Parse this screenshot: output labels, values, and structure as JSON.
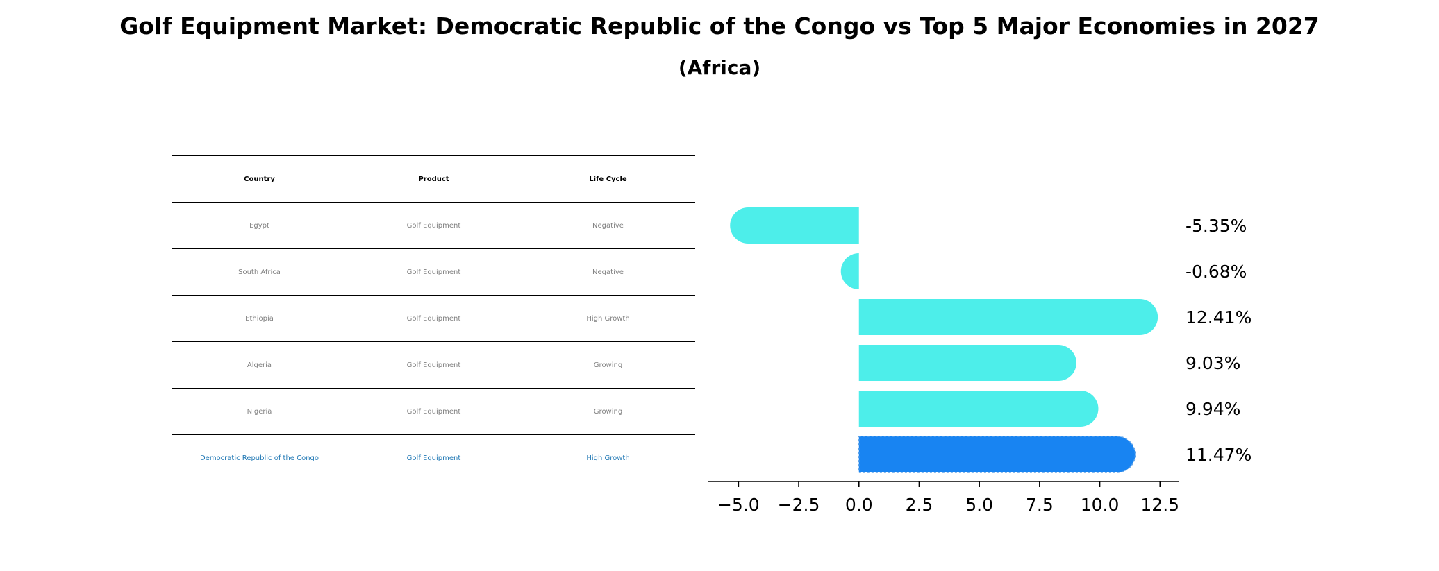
{
  "title": "Golf Equipment Market: Democratic Republic of the Congo vs Top 5 Major Economies in 2027",
  "subtitle": "(Africa)",
  "table": {
    "headers": [
      "Country",
      "Product",
      "Life Cycle"
    ],
    "rows": [
      [
        "Egypt",
        "Golf Equipment",
        "Negative"
      ],
      [
        "South Africa",
        "Golf Equipment",
        "Negative"
      ],
      [
        "Ethiopia",
        "Golf Equipment",
        "High Growth"
      ],
      [
        "Algeria",
        "Golf Equipment",
        "Growing"
      ],
      [
        "Nigeria",
        "Golf Equipment",
        "Growing"
      ],
      [
        "Democratic Republic of the Congo",
        "Golf Equipment",
        "High Growth"
      ]
    ],
    "highlight_row": 5
  },
  "chart_data": {
    "type": "bar",
    "orientation": "horizontal",
    "categories": [
      "Egypt",
      "South Africa",
      "Ethiopia",
      "Algeria",
      "Nigeria",
      "Democratic Republic of the Congo"
    ],
    "values": [
      -5.35,
      -0.68,
      12.41,
      9.03,
      9.94,
      11.47
    ],
    "value_labels": [
      "-5.35%",
      "-0.68%",
      "12.41%",
      "9.03%",
      "9.94%",
      "11.47%"
    ],
    "xlim": [
      -6.25,
      13.3
    ],
    "xticks": [
      -5.0,
      -2.5,
      0.0,
      2.5,
      5.0,
      7.5,
      10.0,
      12.5
    ],
    "xtick_labels": [
      "−5.0",
      "−2.5",
      "0.0",
      "2.5",
      "5.0",
      "7.5",
      "10.0",
      "12.5"
    ],
    "colors": {
      "bar": "#4deeea",
      "highlight": "#1884f2"
    },
    "highlight_index": 5,
    "grid": false
  }
}
